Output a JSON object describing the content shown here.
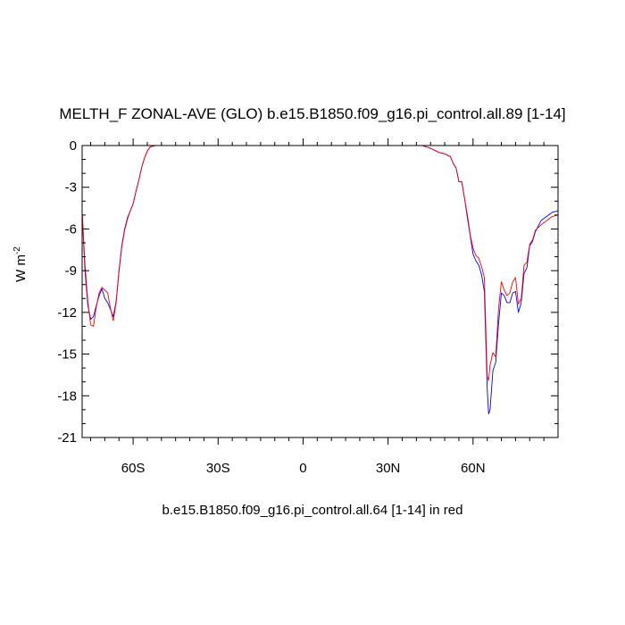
{
  "title": "MELTH_F ZONAL-AVE (GLO) b.e15.B1850.f09_g16.pi_control.all.89 [1-14]",
  "caption": "b.e15.B1850.f09_g16.pi_control.all.64 [1-14] in red",
  "ylabel": {
    "base": "W m",
    "sup": "-2"
  },
  "chart_data": {
    "type": "line",
    "title": "MELTH_F ZONAL-AVE (GLO) b.e15.B1850.f09_g16.pi_control.all.89 [1-14]",
    "xlabel": "",
    "ylabel": "W m-2",
    "xlim": [
      -78,
      90
    ],
    "ylim": [
      -21,
      0
    ],
    "grid": false,
    "x_ticks": [
      {
        "value": -60,
        "label": "60S"
      },
      {
        "value": -30,
        "label": "30S"
      },
      {
        "value": 0,
        "label": "0"
      },
      {
        "value": 30,
        "label": "30N"
      },
      {
        "value": 60,
        "label": "60N"
      }
    ],
    "y_ticks": [
      {
        "value": 0,
        "label": "0"
      },
      {
        "value": -3,
        "label": "-3"
      },
      {
        "value": -6,
        "label": "-6"
      },
      {
        "value": -9,
        "label": "-9"
      },
      {
        "value": -12,
        "label": "-12"
      },
      {
        "value": -15,
        "label": "-15"
      },
      {
        "value": -18,
        "label": "-18"
      },
      {
        "value": -21,
        "label": "-21"
      }
    ],
    "series": [
      {
        "color": "#0000ff",
        "x": [
          -78,
          -77,
          -76,
          -75,
          -74,
          -73,
          -72,
          -71,
          -70,
          -69,
          -68,
          -67,
          -66,
          -65,
          -64,
          -63,
          -62,
          -61,
          -60,
          -59,
          -58,
          -57,
          -56,
          -55,
          -54,
          -52,
          -48,
          -30,
          0,
          30,
          42,
          45,
          48,
          50,
          52,
          53,
          54,
          55,
          56,
          57,
          58,
          59,
          60,
          61,
          62,
          63,
          64,
          65,
          65.5,
          66,
          67,
          68,
          69,
          70,
          71,
          72,
          73,
          74,
          75,
          76,
          77,
          78,
          79,
          80,
          81,
          82,
          84,
          86,
          88,
          90
        ],
        "y": [
          -4.8,
          -9,
          -11.5,
          -12.5,
          -12.3,
          -11.5,
          -10.8,
          -10.3,
          -11,
          -11.3,
          -11.8,
          -12.3,
          -11.2,
          -9,
          -7.2,
          -6,
          -5.2,
          -4.7,
          -4.2,
          -3.3,
          -2.5,
          -1.6,
          -0.9,
          -0.4,
          -0.1,
          0,
          0,
          0,
          0,
          0,
          0,
          -0.2,
          -0.5,
          -0.6,
          -0.8,
          -1.3,
          -1.6,
          -2.6,
          -2.6,
          -3.8,
          -5.2,
          -6.5,
          -7.8,
          -8.3,
          -8.6,
          -9.3,
          -10.5,
          -17.5,
          -19.3,
          -19,
          -16.2,
          -15.6,
          -12.8,
          -10.6,
          -10.8,
          -11.3,
          -11.3,
          -10.6,
          -10.5,
          -12,
          -11.3,
          -9.2,
          -8.8,
          -7.2,
          -6.9,
          -6.2,
          -5.4,
          -5.1,
          -4.8,
          -4.7
        ]
      },
      {
        "color": "#ff0000",
        "x": [
          -78,
          -77,
          -76,
          -75,
          -74,
          -73,
          -72,
          -71,
          -70,
          -69,
          -68,
          -67,
          -66,
          -65,
          -64,
          -63,
          -62,
          -61,
          -60,
          -59,
          -58,
          -57,
          -56,
          -55,
          -54,
          -52,
          -48,
          -30,
          0,
          30,
          42,
          45,
          48,
          50,
          52,
          53,
          54,
          55,
          56,
          57,
          58,
          59,
          60,
          61,
          62,
          63,
          64,
          65,
          65.5,
          66,
          67,
          68,
          69,
          70,
          71,
          72,
          73,
          74,
          75,
          76,
          77,
          78,
          79,
          80,
          81,
          82,
          84,
          86,
          88,
          90
        ],
        "y": [
          -4.8,
          -8.5,
          -11.2,
          -12.9,
          -13,
          -11.6,
          -10.6,
          -10.2,
          -10.4,
          -10.6,
          -11.7,
          -12.6,
          -11.3,
          -9.1,
          -7.3,
          -6.1,
          -5.3,
          -4.7,
          -4.2,
          -3.3,
          -2.5,
          -1.6,
          -0.9,
          -0.4,
          -0.1,
          0,
          0,
          0,
          0,
          0,
          0,
          -0.2,
          -0.5,
          -0.6,
          -0.8,
          -1.3,
          -1.6,
          -2.6,
          -2.6,
          -3.8,
          -5,
          -6.4,
          -7.4,
          -7.9,
          -8.1,
          -8.7,
          -9.5,
          -16.6,
          -16.9,
          -15.8,
          -14.9,
          -15.2,
          -11.7,
          -9.8,
          -10.4,
          -10.8,
          -10.6,
          -9.8,
          -9.5,
          -11.4,
          -11,
          -8.6,
          -8.4,
          -7.1,
          -6.8,
          -6.1,
          -5.7,
          -5.4,
          -5.1,
          -5.0
        ]
      }
    ]
  }
}
